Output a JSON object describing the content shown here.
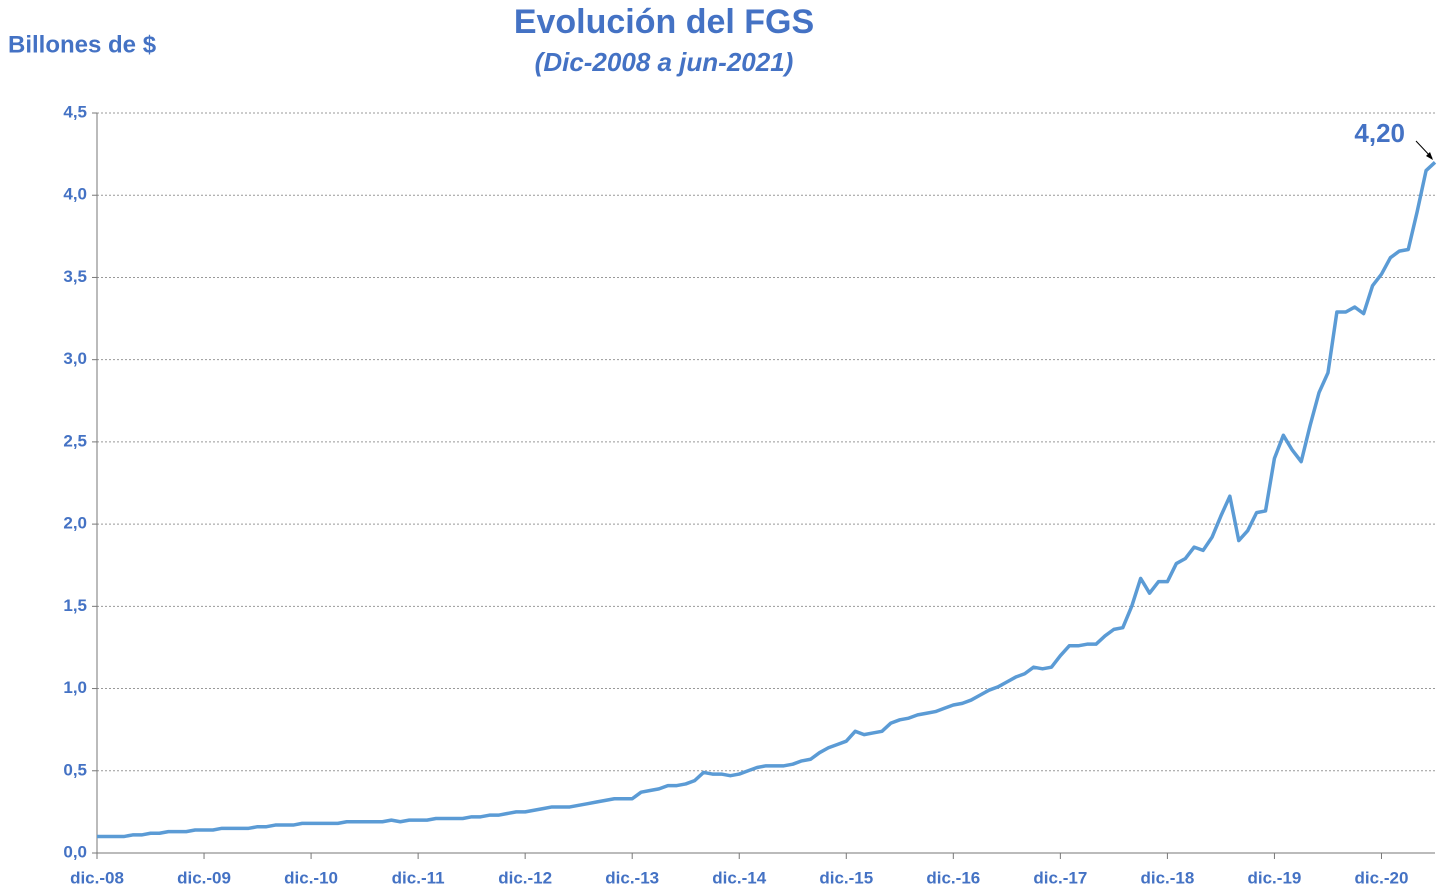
{
  "chart_data": {
    "type": "line",
    "title": "Evolución del FGS",
    "subtitle": "(Dic-2008 a jun-2021)",
    "y_label": "Billones de $",
    "categories": [
      "dic.-08",
      null,
      null,
      null,
      null,
      null,
      null,
      null,
      null,
      null,
      null,
      null,
      "dic.-09",
      null,
      null,
      null,
      null,
      null,
      null,
      null,
      null,
      null,
      null,
      null,
      "dic.-10",
      null,
      null,
      null,
      null,
      null,
      null,
      null,
      null,
      null,
      null,
      null,
      "dic.-11",
      null,
      null,
      null,
      null,
      null,
      null,
      null,
      null,
      null,
      null,
      null,
      "dic.-12",
      null,
      null,
      null,
      null,
      null,
      null,
      null,
      null,
      null,
      null,
      null,
      "dic.-13",
      null,
      null,
      null,
      null,
      null,
      null,
      null,
      null,
      null,
      null,
      null,
      "dic.-14",
      null,
      null,
      null,
      null,
      null,
      null,
      null,
      null,
      null,
      null,
      null,
      "dic.-15",
      null,
      null,
      null,
      null,
      null,
      null,
      null,
      null,
      null,
      null,
      null,
      "dic.-16",
      null,
      null,
      null,
      null,
      null,
      null,
      null,
      null,
      null,
      null,
      null,
      "dic.-17",
      null,
      null,
      null,
      null,
      null,
      null,
      null,
      null,
      null,
      null,
      null,
      "dic.-18",
      null,
      null,
      null,
      null,
      null,
      null,
      null,
      null,
      null,
      null,
      null,
      "dic.-19",
      null,
      null,
      null,
      null,
      null,
      null,
      null,
      null,
      null,
      null,
      null,
      "dic.-20",
      null,
      null,
      null,
      null,
      null,
      null
    ],
    "series": [
      {
        "name": "FGS",
        "color": "#5b9bd5",
        "values": [
          0.1,
          0.1,
          0.1,
          0.1,
          0.11,
          0.11,
          0.12,
          0.12,
          0.13,
          0.13,
          0.13,
          0.14,
          0.14,
          0.14,
          0.15,
          0.15,
          0.15,
          0.15,
          0.16,
          0.16,
          0.17,
          0.17,
          0.17,
          0.18,
          0.18,
          0.18,
          0.18,
          0.18,
          0.19,
          0.19,
          0.19,
          0.19,
          0.19,
          0.2,
          0.19,
          0.2,
          0.2,
          0.2,
          0.21,
          0.21,
          0.21,
          0.21,
          0.22,
          0.22,
          0.23,
          0.23,
          0.24,
          0.25,
          0.25,
          0.26,
          0.27,
          0.28,
          0.28,
          0.28,
          0.29,
          0.3,
          0.31,
          0.32,
          0.33,
          0.33,
          0.33,
          0.37,
          0.38,
          0.39,
          0.41,
          0.41,
          0.42,
          0.44,
          0.49,
          0.48,
          0.48,
          0.47,
          0.48,
          0.5,
          0.52,
          0.53,
          0.53,
          0.53,
          0.54,
          0.56,
          0.57,
          0.61,
          0.64,
          0.66,
          0.68,
          0.74,
          0.72,
          0.73,
          0.74,
          0.79,
          0.81,
          0.82,
          0.84,
          0.85,
          0.86,
          0.88,
          0.9,
          0.91,
          0.93,
          0.96,
          0.99,
          1.01,
          1.04,
          1.07,
          1.09,
          1.13,
          1.12,
          1.13,
          1.2,
          1.26,
          1.26,
          1.27,
          1.27,
          1.32,
          1.36,
          1.37,
          1.5,
          1.67,
          1.58,
          1.65,
          1.65,
          1.76,
          1.79,
          1.86,
          1.84,
          1.92,
          2.05,
          2.17,
          1.9,
          1.96,
          2.07,
          2.08,
          2.4,
          2.54,
          2.45,
          2.38,
          2.6,
          2.8,
          2.92,
          3.29,
          3.29,
          3.32,
          3.28,
          3.45,
          3.52,
          3.62,
          3.66,
          3.67,
          3.9,
          4.15,
          4.2
        ],
        "value_labels": [
          null,
          null,
          null,
          null,
          null,
          null,
          null,
          null,
          null,
          null,
          null,
          null,
          null,
          null,
          null,
          null,
          null,
          null,
          null,
          null,
          null,
          null,
          null,
          null,
          null,
          null,
          null,
          null,
          null,
          null,
          null,
          null,
          null,
          null,
          null,
          null,
          null,
          null,
          null,
          null,
          null,
          null,
          null,
          null,
          null,
          null,
          null,
          null,
          null,
          null,
          null,
          null,
          null,
          null,
          null,
          null,
          null,
          null,
          null,
          null,
          null,
          null,
          null,
          null,
          null,
          null,
          null,
          null,
          null,
          null,
          null,
          null,
          null,
          null,
          null,
          null,
          null,
          null,
          null,
          null,
          null,
          null,
          null,
          null,
          null,
          null,
          null,
          null,
          null,
          null,
          null,
          null,
          null,
          null,
          null,
          null,
          null,
          null,
          null,
          null,
          null,
          null,
          null,
          null,
          null,
          null,
          null,
          null,
          null,
          null,
          null,
          null,
          null,
          null,
          null,
          null,
          null,
          null,
          null,
          null,
          null,
          null,
          null,
          null,
          null,
          null,
          null,
          null,
          null,
          null,
          null,
          null,
          null,
          null,
          null,
          null,
          null,
          null,
          null,
          null,
          null,
          null,
          null,
          null,
          null,
          null,
          null,
          null,
          null,
          null,
          "4,20"
        ]
      }
    ],
    "ylim": [
      0,
      4.5
    ],
    "yticks": [
      {
        "value": 0,
        "label": "0,0"
      },
      {
        "value": 0.5,
        "label": "0,5"
      },
      {
        "value": 1,
        "label": "1,0"
      },
      {
        "value": 1.5,
        "label": "1,5"
      },
      {
        "value": 2,
        "label": "2,0"
      },
      {
        "value": 2.5,
        "label": "2,5"
      },
      {
        "value": 3,
        "label": "3,0"
      },
      {
        "value": 3.5,
        "label": "3,5"
      },
      {
        "value": 4,
        "label": "4,0"
      },
      {
        "value": 4.5,
        "label": "4,5"
      }
    ],
    "grid": true
  }
}
